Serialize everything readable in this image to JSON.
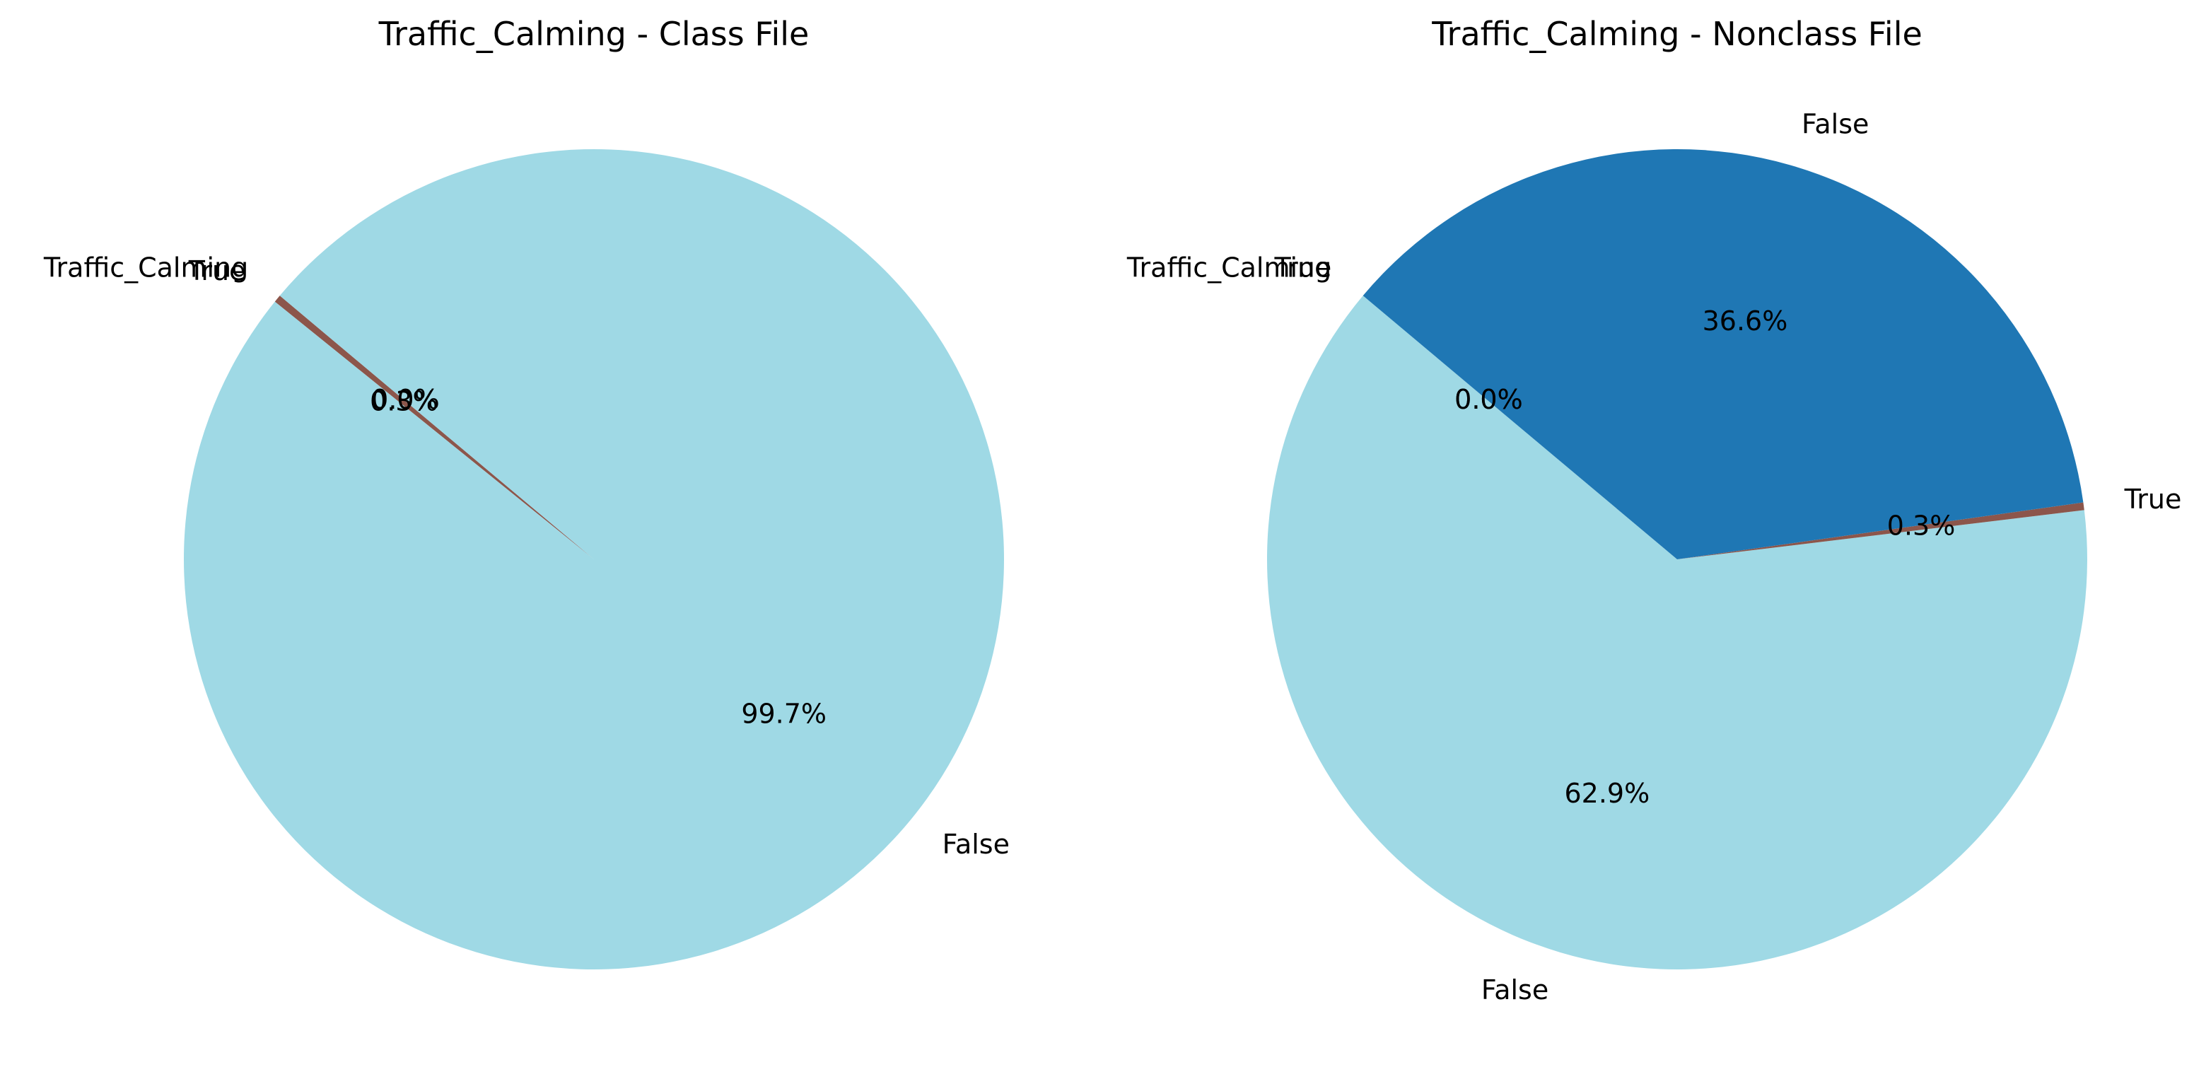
{
  "chart_data": [
    {
      "type": "pie",
      "title": "Traffic_Calming - Class File",
      "start_angle_deg": 140,
      "direction": "counterclockwise",
      "slices": [
        {
          "label": "Traffic_Calming",
          "value": 0.0,
          "pct_label": "0.0%",
          "color": "#2ca02c"
        },
        {
          "label": "True",
          "value": 0.3,
          "pct_label": "0.3%",
          "color": "#8c564b"
        },
        {
          "label": "False",
          "value": 99.7,
          "pct_label": "99.7%",
          "color": "#9fd9e5"
        }
      ]
    },
    {
      "type": "pie",
      "title": "Traffic_Calming - Nonclass File",
      "start_angle_deg": 140,
      "direction": "counterclockwise",
      "slices": [
        {
          "label": "Traffic_Calming",
          "value": 0.0,
          "pct_label": "0.0%",
          "color": "#2ca02c"
        },
        {
          "label": "True",
          "value": 0.0,
          "pct_label": "0.0%",
          "color": "#b5e07a"
        },
        {
          "label": "False",
          "value": 62.9,
          "pct_label": "62.9%",
          "color": "#9fd9e5"
        },
        {
          "label": "True",
          "value": 0.3,
          "pct_label": "0.3%",
          "color": "#8c564b"
        },
        {
          "label": "False",
          "value": 36.6,
          "pct_label": "36.6%",
          "color": "#1f77b4"
        }
      ]
    }
  ]
}
